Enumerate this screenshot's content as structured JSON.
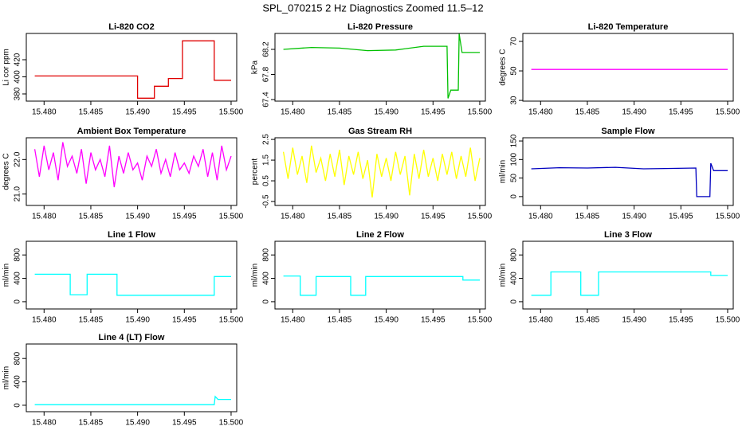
{
  "title": "SPL_070215  2 Hz Diagnostics Zoomed 11.5–12",
  "chart_data": [
    {
      "type": "line",
      "title": "Li-820 CO2",
      "y_label": "Li cor ppm",
      "xlim": [
        15.4781,
        15.5006
      ],
      "xticks": [
        {
          "value": 15.48,
          "label": "15.480"
        },
        {
          "value": 15.485,
          "label": "15.485"
        },
        {
          "value": 15.49,
          "label": "15.490"
        },
        {
          "value": 15.495,
          "label": "15.495"
        },
        {
          "value": 15.5,
          "label": "15.500"
        }
      ],
      "ylim": [
        371.6,
        450.7
      ],
      "yticks": [
        380,
        400,
        420
      ],
      "x": [
        15.479,
        15.49,
        15.49,
        15.4918,
        15.4918,
        15.4933,
        15.4933,
        15.4948,
        15.4948,
        15.4982,
        15.4982,
        15.5
      ],
      "series": [
        {
          "color": "#e00000",
          "values": [
            401,
            401,
            375,
            375,
            389,
            389,
            398,
            398,
            442,
            442,
            396,
            396
          ]
        }
      ]
    },
    {
      "type": "line",
      "title": "Li-820 Pressure",
      "y_label": "kPa",
      "xlim": [
        15.4781,
        15.5006
      ],
      "xticks": [
        {
          "value": 15.48,
          "label": "15.480"
        },
        {
          "value": 15.485,
          "label": "15.485"
        },
        {
          "value": 15.49,
          "label": "15.490"
        },
        {
          "value": 15.495,
          "label": "15.495"
        },
        {
          "value": 15.5,
          "label": "15.500"
        }
      ],
      "ylim": [
        67.375,
        68.454
      ],
      "yticks": [
        67.4,
        67.8,
        68.2
      ],
      "x": [
        15.479,
        15.482,
        15.485,
        15.488,
        15.491,
        15.494,
        15.4965,
        15.4966,
        15.4969,
        15.4977,
        15.4978,
        15.4981,
        15.5
      ],
      "series": [
        {
          "color": "#00c000",
          "values": [
            68.2,
            68.23,
            68.22,
            68.18,
            68.19,
            68.25,
            68.25,
            67.42,
            67.55,
            67.55,
            68.45,
            68.15,
            68.15
          ]
        }
      ]
    },
    {
      "type": "line",
      "title": "Li-820 Temperature",
      "y_label": "degrees C",
      "xlim": [
        15.4781,
        15.5006
      ],
      "xticks": [
        {
          "value": 15.48,
          "label": "15.480"
        },
        {
          "value": 15.485,
          "label": "15.485"
        },
        {
          "value": 15.49,
          "label": "15.490"
        },
        {
          "value": 15.495,
          "label": "15.495"
        },
        {
          "value": 15.5,
          "label": "15.500"
        }
      ],
      "ylim": [
        29.5,
        75.4
      ],
      "yticks": [
        30,
        50,
        70
      ],
      "x": [
        15.479,
        15.5
      ],
      "series": [
        {
          "color": "#ff00ff",
          "values": [
            51,
            51
          ]
        }
      ]
    },
    {
      "type": "line",
      "title": "Ambient Box Temperature",
      "y_label": "degrees C",
      "xlim": [
        15.4781,
        15.5006
      ],
      "xticks": [
        {
          "value": 15.48,
          "label": "15.480"
        },
        {
          "value": 15.485,
          "label": "15.485"
        },
        {
          "value": 15.49,
          "label": "15.490"
        },
        {
          "value": 15.495,
          "label": "15.495"
        },
        {
          "value": 15.5,
          "label": "15.500"
        }
      ],
      "ylim": [
        20.67,
        22.63
      ],
      "yticks": [
        {
          "value": 21,
          "label": "21.0"
        },
        {
          "value": 22,
          "label": "22.0"
        }
      ],
      "x": [
        15.479,
        15.4795,
        15.48,
        15.4805,
        15.481,
        15.4815,
        15.482,
        15.4825,
        15.483,
        15.4835,
        15.484,
        15.4845,
        15.485,
        15.4855,
        15.486,
        15.4865,
        15.487,
        15.4875,
        15.488,
        15.4885,
        15.489,
        15.4895,
        15.49,
        15.4905,
        15.491,
        15.4915,
        15.492,
        15.4925,
        15.493,
        15.4935,
        15.494,
        15.4945,
        15.495,
        15.4955,
        15.496,
        15.4965,
        15.497,
        15.4975,
        15.498,
        15.4985,
        15.499,
        15.4995,
        15.5
      ],
      "series": [
        {
          "color": "#ff00ff",
          "values": [
            22.3,
            21.5,
            22.4,
            21.7,
            22.2,
            21.4,
            22.5,
            21.8,
            22.1,
            21.6,
            22.3,
            21.3,
            22.2,
            21.7,
            22.0,
            21.5,
            22.4,
            21.2,
            22.1,
            21.6,
            22.2,
            21.7,
            21.9,
            21.4,
            22.1,
            21.8,
            22.3,
            21.6,
            22.0,
            21.5,
            22.2,
            21.7,
            21.9,
            21.6,
            22.1,
            21.8,
            22.3,
            21.5,
            22.2,
            21.4,
            22.4,
            21.7,
            22.1
          ]
        }
      ]
    },
    {
      "type": "line",
      "title": "Gas Stream RH",
      "y_label": "percent",
      "xlim": [
        15.4781,
        15.5006
      ],
      "xticks": [
        {
          "value": 15.48,
          "label": "15.480"
        },
        {
          "value": 15.485,
          "label": "15.485"
        },
        {
          "value": 15.49,
          "label": "15.490"
        },
        {
          "value": 15.495,
          "label": "15.495"
        },
        {
          "value": 15.5,
          "label": "15.500"
        }
      ],
      "ylim": [
        -0.69,
        2.58
      ],
      "yticks": [
        -0.5,
        0.5,
        1.5,
        2.5
      ],
      "x": [
        15.479,
        15.4795,
        15.48,
        15.4805,
        15.481,
        15.4815,
        15.482,
        15.4825,
        15.483,
        15.4835,
        15.484,
        15.4845,
        15.485,
        15.4855,
        15.486,
        15.4865,
        15.487,
        15.4875,
        15.488,
        15.4885,
        15.489,
        15.4895,
        15.49,
        15.4905,
        15.491,
        15.4915,
        15.492,
        15.4925,
        15.493,
        15.4935,
        15.494,
        15.4945,
        15.495,
        15.4955,
        15.496,
        15.4965,
        15.497,
        15.4975,
        15.498,
        15.4985,
        15.499,
        15.4995,
        15.5
      ],
      "series": [
        {
          "color": "#ffff00",
          "values": [
            1.9,
            0.6,
            2.1,
            0.8,
            1.7,
            0.4,
            2.2,
            0.9,
            1.6,
            0.5,
            1.8,
            0.7,
            2.0,
            0.3,
            1.7,
            0.8,
            1.9,
            0.6,
            1.5,
            -0.3,
            1.8,
            0.7,
            1.6,
            0.5,
            1.9,
            0.8,
            1.7,
            -0.2,
            1.8,
            0.6,
            2.0,
            0.7,
            1.6,
            0.5,
            1.8,
            0.8,
            1.9,
            0.6,
            1.7,
            0.7,
            2.1,
            0.5,
            1.6
          ]
        }
      ]
    },
    {
      "type": "line",
      "title": "Sample Flow",
      "y_label": "ml/min",
      "xlim": [
        15.4781,
        15.5006
      ],
      "xticks": [
        {
          "value": 15.48,
          "label": "15.480"
        },
        {
          "value": 15.485,
          "label": "15.485"
        },
        {
          "value": 15.49,
          "label": "15.490"
        },
        {
          "value": 15.495,
          "label": "15.495"
        },
        {
          "value": 15.5,
          "label": "15.500"
        }
      ],
      "ylim": [
        -23.9,
        158.7
      ],
      "yticks": [
        0,
        50,
        100,
        150
      ],
      "x": [
        15.479,
        15.482,
        15.485,
        15.488,
        15.491,
        15.494,
        15.4966,
        15.4967,
        15.4981,
        15.4982,
        15.4985,
        15.5
      ],
      "series": [
        {
          "color": "#0000c0",
          "values": [
            75,
            78,
            77,
            79,
            75,
            76,
            77,
            0,
            0,
            90,
            70,
            70
          ]
        }
      ]
    },
    {
      "type": "line",
      "title": "Line 1 Flow",
      "y_label": "ml/min",
      "xlim": [
        15.4781,
        15.5006
      ],
      "xticks": [
        {
          "value": 15.48,
          "label": "15.480"
        },
        {
          "value": 15.485,
          "label": "15.485"
        },
        {
          "value": 15.49,
          "label": "15.490"
        },
        {
          "value": 15.495,
          "label": "15.495"
        },
        {
          "value": 15.5,
          "label": "15.500"
        }
      ],
      "ylim": [
        -124,
        1034
      ],
      "yticks": [
        0,
        400,
        800
      ],
      "x": [
        15.479,
        15.4828,
        15.4828,
        15.4846,
        15.4846,
        15.4878,
        15.4878,
        15.4982,
        15.4982,
        15.5
      ],
      "series": [
        {
          "color": "#00ffff",
          "values": [
            470,
            470,
            120,
            120,
            470,
            470,
            110,
            110,
            430,
            430
          ]
        }
      ]
    },
    {
      "type": "line",
      "title": "Line 2 Flow",
      "y_label": "ml/min",
      "xlim": [
        15.4781,
        15.5006
      ],
      "xticks": [
        {
          "value": 15.48,
          "label": "15.480"
        },
        {
          "value": 15.485,
          "label": "15.485"
        },
        {
          "value": 15.49,
          "label": "15.490"
        },
        {
          "value": 15.495,
          "label": "15.495"
        },
        {
          "value": 15.5,
          "label": "15.500"
        }
      ],
      "ylim": [
        -124,
        1034
      ],
      "yticks": [
        0,
        400,
        800
      ],
      "x": [
        15.479,
        15.4808,
        15.4808,
        15.4825,
        15.4825,
        15.4862,
        15.4862,
        15.4878,
        15.4878,
        15.4982,
        15.4982,
        15.5
      ],
      "series": [
        {
          "color": "#00ffff",
          "values": [
            440,
            440,
            110,
            110,
            430,
            430,
            110,
            110,
            430,
            430,
            370,
            370
          ]
        }
      ]
    },
    {
      "type": "line",
      "title": "Line 3 Flow",
      "y_label": "ml/min",
      "xlim": [
        15.4781,
        15.5006
      ],
      "xticks": [
        {
          "value": 15.48,
          "label": "15.480"
        },
        {
          "value": 15.485,
          "label": "15.485"
        },
        {
          "value": 15.49,
          "label": "15.490"
        },
        {
          "value": 15.495,
          "label": "15.495"
        },
        {
          "value": 15.5,
          "label": "15.500"
        }
      ],
      "ylim": [
        -124,
        1034
      ],
      "yticks": [
        0,
        400,
        800
      ],
      "x": [
        15.479,
        15.4811,
        15.4811,
        15.4843,
        15.4843,
        15.4862,
        15.4862,
        15.4982,
        15.4982,
        15.5
      ],
      "series": [
        {
          "color": "#00ffff",
          "values": [
            110,
            110,
            510,
            510,
            110,
            110,
            510,
            510,
            450,
            450
          ]
        }
      ]
    },
    {
      "type": "line",
      "title": "Line 4 (LT) Flow",
      "y_label": "ml/min",
      "xlim": [
        15.4781,
        15.5006
      ],
      "xticks": [
        {
          "value": 15.48,
          "label": "15.480"
        },
        {
          "value": 15.485,
          "label": "15.485"
        },
        {
          "value": 15.49,
          "label": "15.490"
        },
        {
          "value": 15.495,
          "label": "15.495"
        },
        {
          "value": 15.5,
          "label": "15.500"
        }
      ],
      "ylim": [
        -110,
        1048
      ],
      "yticks": [
        0,
        400,
        800
      ],
      "x": [
        15.479,
        15.4982,
        15.4983,
        15.4986,
        15.5
      ],
      "series": [
        {
          "color": "#00ffff",
          "values": [
            10,
            10,
            150,
            100,
            100
          ]
        }
      ]
    }
  ]
}
